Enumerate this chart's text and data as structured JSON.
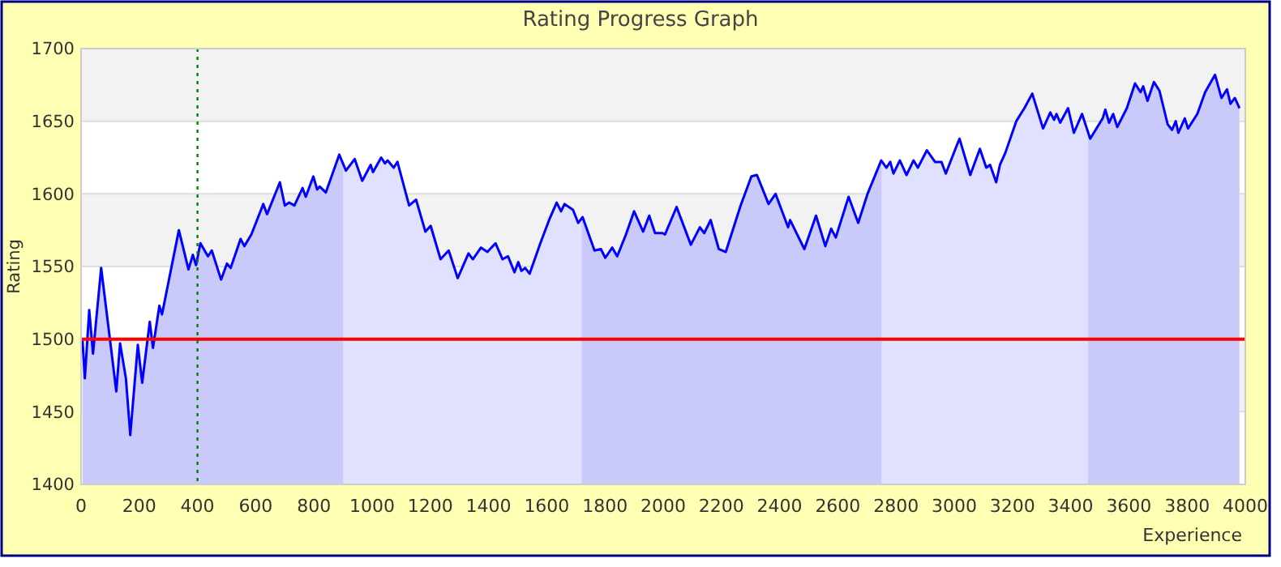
{
  "chart_data": {
    "type": "area",
    "title": "Rating Progress Graph",
    "xlabel": "Experience",
    "ylabel": "Rating",
    "xlim": [
      0,
      4000
    ],
    "ylim": [
      1400,
      1700
    ],
    "xticks": [
      0,
      200,
      400,
      600,
      800,
      1000,
      1200,
      1400,
      1600,
      1800,
      2000,
      2200,
      2400,
      2600,
      2800,
      3000,
      3200,
      3400,
      3600,
      3800,
      4000
    ],
    "yticks": [
      1400,
      1450,
      1500,
      1550,
      1600,
      1650,
      1700
    ],
    "grid": "y",
    "marker": "none",
    "series": [
      {
        "color": "#0000ff",
        "x": [
          5,
          13,
          28,
          41,
          69,
          93,
          121,
          134,
          154,
          169,
          195,
          210,
          236,
          247,
          269,
          278,
          336,
          369,
          384,
          395,
          410,
          436,
          449,
          481,
          501,
          514,
          548,
          561,
          585,
          626,
          639,
          683,
          700,
          715,
          733,
          761,
          772,
          798,
          811,
          820,
          841,
          887,
          910,
          940,
          966,
          995,
          1003,
          1031,
          1044,
          1053,
          1074,
          1087,
          1127,
          1151,
          1183,
          1201,
          1235,
          1263,
          1294,
          1331,
          1346,
          1374,
          1396,
          1424,
          1448,
          1467,
          1489,
          1502,
          1513,
          1526,
          1541,
          1578,
          1610,
          1634,
          1649,
          1661,
          1690,
          1708,
          1723,
          1764,
          1786,
          1801,
          1825,
          1842,
          1872,
          1900,
          1931,
          1952,
          1972,
          1998,
          2006,
          2046,
          2095,
          2126,
          2141,
          2163,
          2191,
          2215,
          2266,
          2303,
          2322,
          2362,
          2386,
          2429,
          2436,
          2485,
          2525,
          2557,
          2577,
          2593,
          2637,
          2670,
          2702,
          2749,
          2767,
          2780,
          2791,
          2813,
          2836,
          2860,
          2875,
          2906,
          2934,
          2956,
          2971,
          3004,
          3018,
          3055,
          3088,
          3110,
          3123,
          3144,
          3157,
          3175,
          3213,
          3241,
          3268,
          3305,
          3330,
          3343,
          3351,
          3364,
          3391,
          3411,
          3439,
          3467,
          3510,
          3519,
          3532,
          3546,
          3560,
          3593,
          3621,
          3640,
          3649,
          3664,
          3686,
          3705,
          3733,
          3748,
          3761,
          3770,
          3792,
          3803,
          3835,
          3862,
          3896,
          3918,
          3937,
          3949,
          3964,
          3980
        ],
        "values": [
          1499,
          1473,
          1520,
          1490,
          1549,
          1510,
          1464,
          1497,
          1473,
          1434,
          1496,
          1470,
          1512,
          1494,
          1523,
          1517,
          1575,
          1548,
          1558,
          1551,
          1566,
          1557,
          1561,
          1541,
          1552,
          1549,
          1569,
          1564,
          1572,
          1593,
          1586,
          1608,
          1592,
          1594,
          1592,
          1604,
          1598,
          1612,
          1603,
          1605,
          1601,
          1627,
          1616,
          1624,
          1609,
          1620,
          1615,
          1625,
          1621,
          1623,
          1618,
          1622,
          1592,
          1596,
          1574,
          1578,
          1555,
          1561,
          1542,
          1559,
          1555,
          1563,
          1560,
          1566,
          1555,
          1557,
          1546,
          1553,
          1547,
          1549,
          1545,
          1566,
          1583,
          1594,
          1588,
          1593,
          1589,
          1580,
          1584,
          1561,
          1562,
          1556,
          1563,
          1557,
          1572,
          1588,
          1574,
          1585,
          1573,
          1573,
          1572,
          1591,
          1565,
          1577,
          1573,
          1582,
          1562,
          1560,
          1592,
          1612,
          1613,
          1593,
          1600,
          1577,
          1582,
          1562,
          1585,
          1564,
          1576,
          1570,
          1598,
          1580,
          1600,
          1623,
          1618,
          1622,
          1614,
          1623,
          1613,
          1623,
          1618,
          1630,
          1622,
          1622,
          1614,
          1631,
          1638,
          1613,
          1631,
          1618,
          1620,
          1608,
          1620,
          1628,
          1650,
          1659,
          1669,
          1645,
          1656,
          1651,
          1655,
          1649,
          1659,
          1642,
          1655,
          1638,
          1652,
          1658,
          1649,
          1655,
          1646,
          1659,
          1676,
          1670,
          1674,
          1664,
          1677,
          1671,
          1648,
          1644,
          1650,
          1642,
          1652,
          1645,
          1655,
          1670,
          1682,
          1666,
          1672,
          1662,
          1666,
          1659
        ]
      }
    ],
    "bands": [
      {
        "axis": "x",
        "from": 0,
        "to": 900,
        "color": "#e6e6fa"
      },
      {
        "axis": "x",
        "from": 1720,
        "to": 2750,
        "color": "#e6e6fa"
      },
      {
        "axis": "x",
        "from": 3460,
        "to": 3980,
        "color": "#e6e6fa"
      }
    ],
    "ref_lines": [
      {
        "axis": "y",
        "value": 1500,
        "color": "#ff0000",
        "line_style": "solid"
      },
      {
        "axis": "x",
        "value": 400,
        "color": "#008000",
        "line_style": "dotted"
      }
    ]
  }
}
